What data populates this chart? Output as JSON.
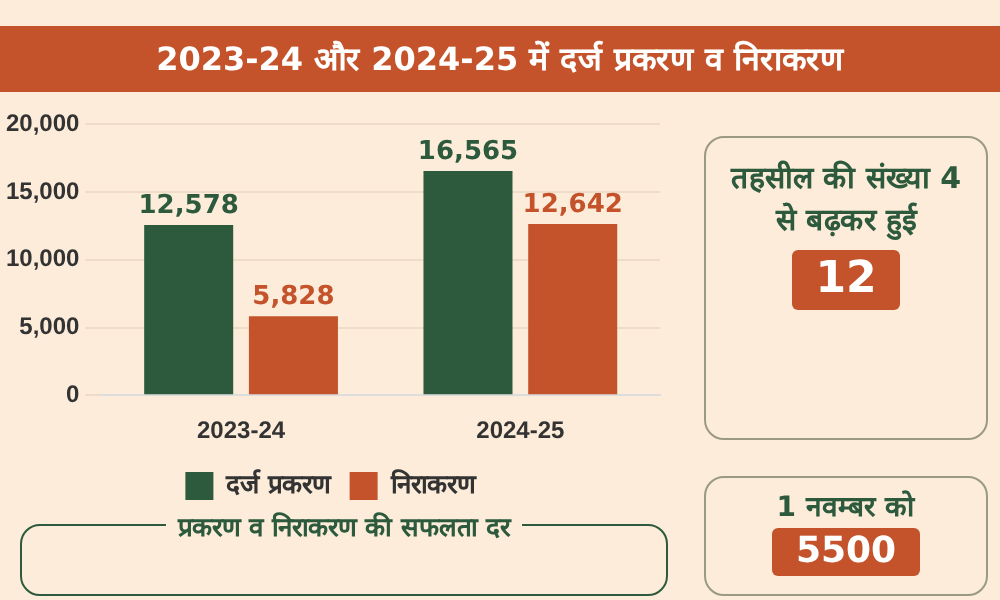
{
  "chart_data": {
    "type": "bar",
    "title": "2023-24 और 2024-25 में दर्ज प्रकरण व निराकरण",
    "categories": [
      "2023-24",
      "2024-25"
    ],
    "series": [
      {
        "name": "दर्ज प्रकरण",
        "color": "#2d5a3d",
        "values": [
          12578,
          16565
        ],
        "value_labels": [
          "12,578",
          "16,565"
        ]
      },
      {
        "name": "निराकरण",
        "color": "#c4532b",
        "values": [
          5828,
          12642
        ],
        "value_labels": [
          "5,828",
          "12,642"
        ]
      }
    ],
    "ylim": [
      0,
      20000
    ],
    "yticks": [
      0,
      {
        "value": 5000,
        "label": "5,000"
      },
      {
        "value": 10000,
        "label": "10,000"
      },
      {
        "value": 15000,
        "label": "15,000"
      },
      {
        "value": 20000,
        "label": "20,000"
      }
    ],
    "grid": "y",
    "legend": "bottom",
    "annotations": [
      "तहसील की संख्या 4 से बढ़कर हुई",
      "12",
      "प्रकरण व निराकरण की सफलता दर",
      "1 नवम्बर को",
      "5500"
    ]
  }
}
